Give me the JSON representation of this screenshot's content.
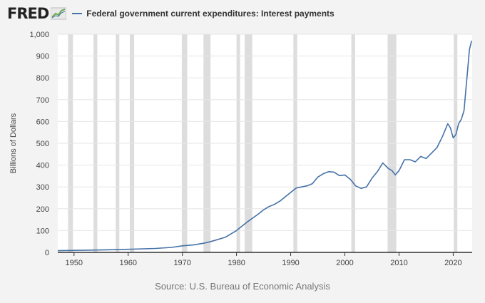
{
  "brand": {
    "logo_text": "FRED",
    "logo_icon": "trend-line-icon"
  },
  "colors": {
    "line": "#4572a7",
    "recession": "#dddddd",
    "plot_bg": "#ffffff",
    "page_bg": "#f3f3f3",
    "text": "#444444",
    "grid": "#e6e6e6"
  },
  "source": "Source: U.S. Bureau of Economic Analysis",
  "chart_data": {
    "type": "line",
    "title": "",
    "xlabel": "",
    "ylabel": "Billions of Dollars",
    "xlim": [
      1947,
      2023.5
    ],
    "ylim": [
      0,
      1000
    ],
    "x_ticks": [
      1950,
      1960,
      1970,
      1980,
      1990,
      2000,
      2010,
      2020
    ],
    "y_ticks": [
      0,
      100,
      200,
      300,
      400,
      500,
      600,
      700,
      800,
      900,
      1000
    ],
    "y_tick_labels": [
      "0",
      "100",
      "200",
      "300",
      "400",
      "500",
      "600",
      "700",
      "800",
      "900",
      "1,000"
    ],
    "grid": true,
    "legend": "top-left",
    "recessions": [
      [
        1948.9,
        1949.8
      ],
      [
        1953.6,
        1954.3
      ],
      [
        1957.7,
        1958.3
      ],
      [
        1960.3,
        1961.1
      ],
      [
        1969.9,
        1970.9
      ],
      [
        1973.9,
        1975.2
      ],
      [
        1980.0,
        1980.5
      ],
      [
        1981.5,
        1982.9
      ],
      [
        1990.5,
        1991.2
      ],
      [
        2001.2,
        2001.9
      ],
      [
        2007.9,
        2009.5
      ],
      [
        2020.1,
        2020.4
      ]
    ],
    "series": [
      {
        "name": "Federal government current expenditures: Interest payments",
        "x": [
          1947,
          1950,
          1955,
          1960,
          1965,
          1968,
          1970,
          1972,
          1974,
          1975,
          1976,
          1978,
          1980,
          1981,
          1982,
          1984,
          1985,
          1986,
          1987,
          1988,
          1989,
          1990,
          1991,
          1992,
          1993,
          1994,
          1995,
          1996,
          1997,
          1998,
          1999,
          2000,
          2001,
          2002,
          2003,
          2004,
          2005,
          2006,
          2007,
          2008,
          2008.7,
          2009.3,
          2010,
          2011,
          2012,
          2013,
          2014,
          2015,
          2016,
          2017,
          2018,
          2019,
          2019.5,
          2020,
          2020.5,
          2021,
          2021.5,
          2022,
          2022.5,
          2023,
          2023.4
        ],
        "y": [
          8,
          9,
          11,
          14,
          18,
          23,
          30,
          34,
          42,
          48,
          55,
          70,
          100,
          120,
          140,
          175,
          195,
          210,
          220,
          235,
          255,
          275,
          295,
          300,
          305,
          315,
          345,
          360,
          370,
          368,
          352,
          355,
          335,
          305,
          293,
          300,
          340,
          370,
          410,
          385,
          375,
          355,
          375,
          425,
          425,
          415,
          440,
          430,
          455,
          480,
          530,
          590,
          570,
          525,
          540,
          590,
          610,
          650,
          790,
          930,
          970
        ]
      }
    ]
  }
}
